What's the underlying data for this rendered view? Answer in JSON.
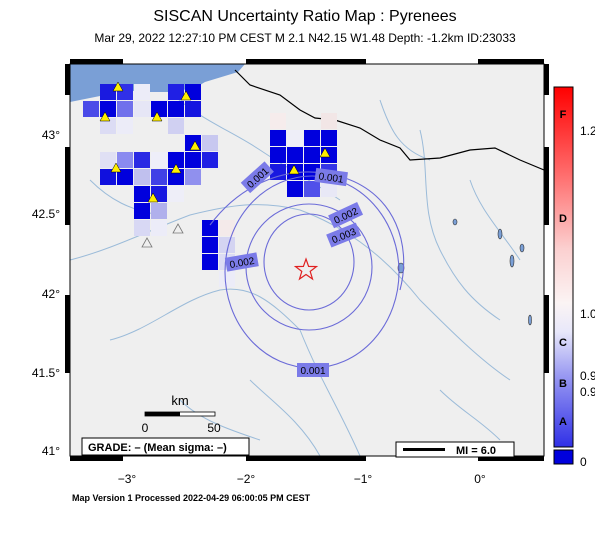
{
  "map": {
    "title": "SISCAN Uncertainty Ratio Map : Pyrenees",
    "subtitle": "Mar 29, 2022 12:27:10 PM CEST   M 2.1   N42.15 W1.48   Depth: -1.2km   ID:23033",
    "footer": "Map Version 1 Processed 2022-04-29 06:00:05 PM CEST",
    "y_ticks": [
      "43°",
      "42.5°",
      "42°",
      "41.5°",
      "41°"
    ],
    "x_ticks": [
      "−3°",
      "−2°",
      "−1°",
      "0°"
    ],
    "scale_bar": {
      "unit": "km",
      "start": "0",
      "end": "50"
    },
    "grade_box": "GRADE: – (Mean sigma: –)",
    "mi_legend": "MI = 6.0",
    "contour_labels": [
      "0.001",
      "0.001",
      "0.002",
      "0.003",
      "0.002",
      "0.001"
    ],
    "colorbar": {
      "grades": [
        "F",
        "D",
        "C",
        "B",
        "A"
      ],
      "values": [
        "1.2",
        "1.0",
        "0.9",
        "0.9",
        "0"
      ]
    },
    "colors": {
      "water": "#7a9fd6",
      "grid_cell": "#0000dd",
      "station": "#ffee00",
      "epicenter": "#e02020"
    }
  }
}
